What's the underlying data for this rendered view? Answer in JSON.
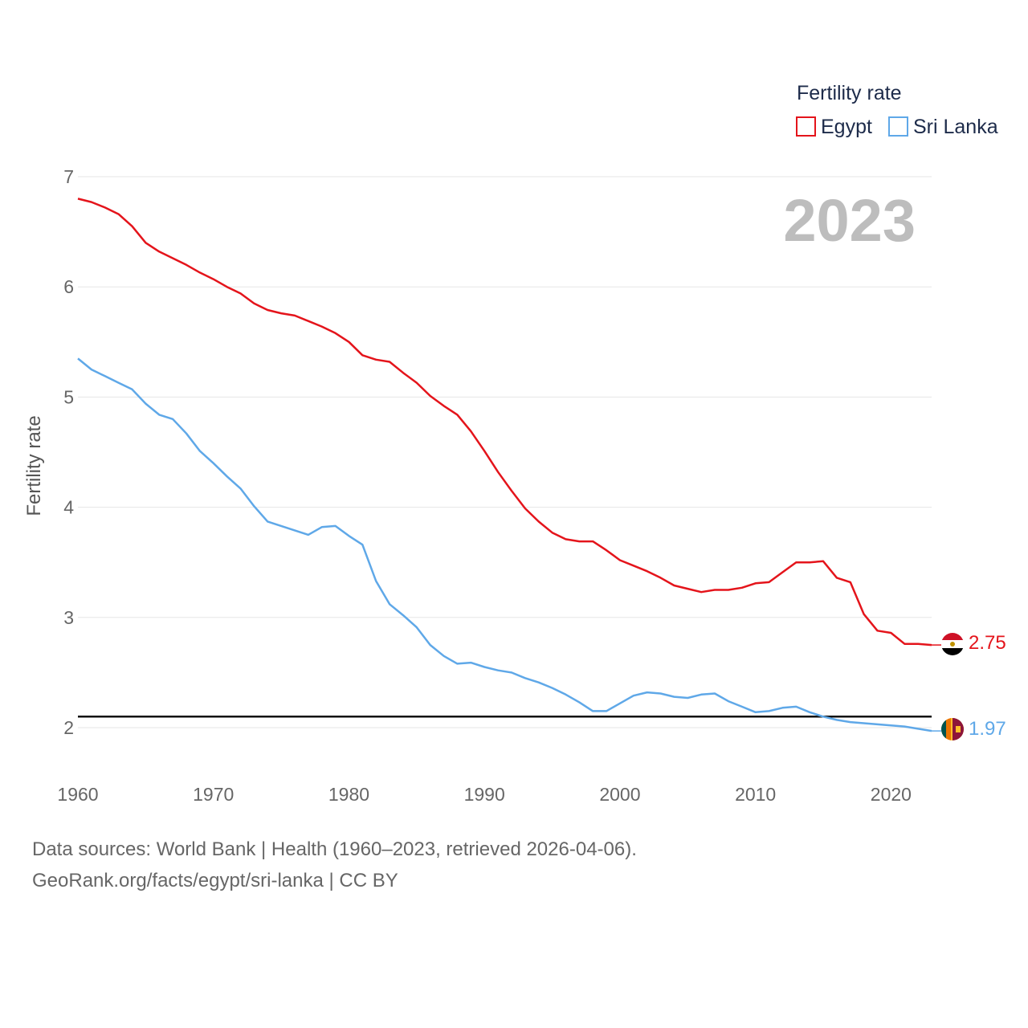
{
  "chart_data": {
    "type": "line",
    "title": "2023",
    "ylabel": "Fertility rate",
    "xlabel": "",
    "ylim": [
      1.55,
      7.0
    ],
    "xlim": [
      1960,
      2023
    ],
    "y_ticks": [
      2,
      3,
      4,
      5,
      6,
      7
    ],
    "x_ticks": [
      1960,
      1970,
      1980,
      1990,
      2000,
      2010,
      2020
    ],
    "reference_line": 2.1,
    "legend": {
      "title": "Fertility rate",
      "placement": "top-right"
    },
    "x": [
      1960,
      1961,
      1962,
      1963,
      1964,
      1965,
      1966,
      1967,
      1968,
      1969,
      1970,
      1971,
      1972,
      1973,
      1974,
      1975,
      1976,
      1977,
      1978,
      1979,
      1980,
      1981,
      1982,
      1983,
      1984,
      1985,
      1986,
      1987,
      1988,
      1989,
      1990,
      1991,
      1992,
      1993,
      1994,
      1995,
      1996,
      1997,
      1998,
      1999,
      2000,
      2001,
      2002,
      2003,
      2004,
      2005,
      2006,
      2007,
      2008,
      2009,
      2010,
      2011,
      2012,
      2013,
      2014,
      2015,
      2016,
      2017,
      2018,
      2019,
      2020,
      2021,
      2022,
      2023
    ],
    "series": [
      {
        "name": "Egypt",
        "color": "#e4141b",
        "end_label": "2.75",
        "values": [
          6.8,
          6.77,
          6.72,
          6.66,
          6.55,
          6.4,
          6.32,
          6.26,
          6.2,
          6.13,
          6.07,
          6.0,
          5.94,
          5.85,
          5.79,
          5.76,
          5.74,
          5.69,
          5.64,
          5.58,
          5.5,
          5.38,
          5.34,
          5.32,
          5.22,
          5.13,
          5.01,
          4.92,
          4.84,
          4.69,
          4.51,
          4.32,
          4.15,
          3.99,
          3.87,
          3.77,
          3.71,
          3.69,
          3.69,
          3.61,
          3.52,
          3.47,
          3.42,
          3.36,
          3.29,
          3.26,
          3.23,
          3.25,
          3.25,
          3.27,
          3.31,
          3.32,
          3.41,
          3.5,
          3.5,
          3.51,
          3.36,
          3.32,
          3.03,
          2.88,
          2.86,
          2.76,
          2.76,
          2.75
        ]
      },
      {
        "name": "Sri Lanka",
        "color": "#5fa8e8",
        "end_label": "1.97",
        "values": [
          5.35,
          5.25,
          5.19,
          5.13,
          5.07,
          4.94,
          4.84,
          4.8,
          4.67,
          4.51,
          4.4,
          4.28,
          4.17,
          4.01,
          3.87,
          3.83,
          3.79,
          3.75,
          3.82,
          3.83,
          3.74,
          3.66,
          3.33,
          3.12,
          3.02,
          2.91,
          2.75,
          2.65,
          2.58,
          2.59,
          2.55,
          2.52,
          2.5,
          2.45,
          2.41,
          2.36,
          2.3,
          2.23,
          2.15,
          2.15,
          2.22,
          2.29,
          2.32,
          2.31,
          2.28,
          2.27,
          2.3,
          2.31,
          2.24,
          2.19,
          2.14,
          2.15,
          2.18,
          2.19,
          2.14,
          2.1,
          2.07,
          2.05,
          2.04,
          2.03,
          2.02,
          2.01,
          1.99,
          1.97
        ]
      }
    ]
  },
  "footer": {
    "line1": "Data sources: World Bank | Health (1960–2023, retrieved 2026-04-06).",
    "line2": "GeoRank.org/facts/egypt/sri-lanka | CC BY"
  }
}
